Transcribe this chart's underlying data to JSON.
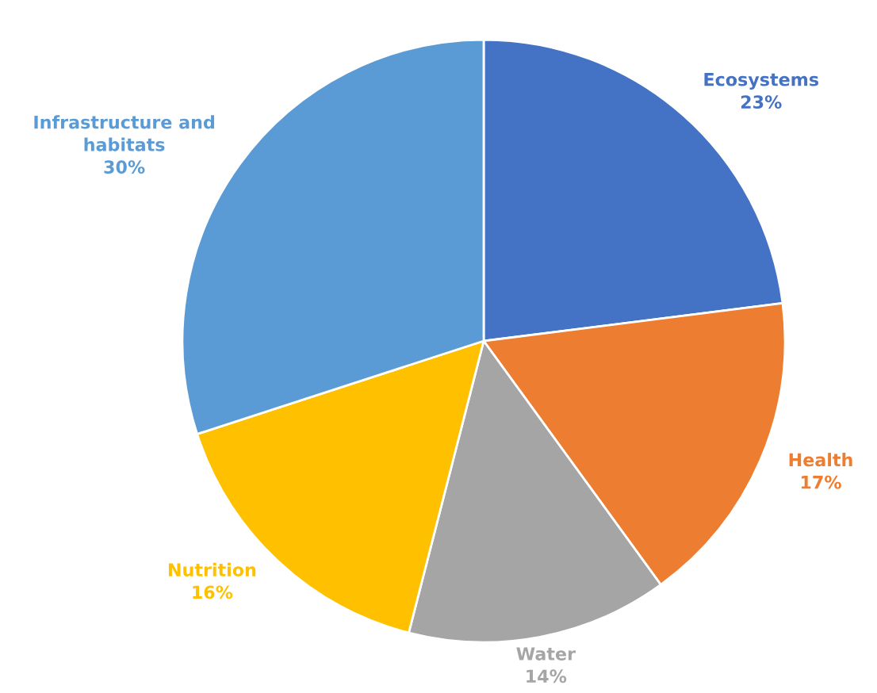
{
  "chart_data": {
    "type": "pie",
    "categories": [
      "Ecosystems",
      "Health",
      "Water",
      "Nutrition",
      "Infrastructure and habitats"
    ],
    "values": [
      23,
      17,
      14,
      16,
      30
    ],
    "value_labels": [
      "23%",
      "17%",
      "14%",
      "16%",
      "30%"
    ],
    "colors": [
      "#4472c4",
      "#ed7d31",
      "#a5a5a5",
      "#ffc000",
      "#5b9bd5"
    ],
    "legend": false
  }
}
